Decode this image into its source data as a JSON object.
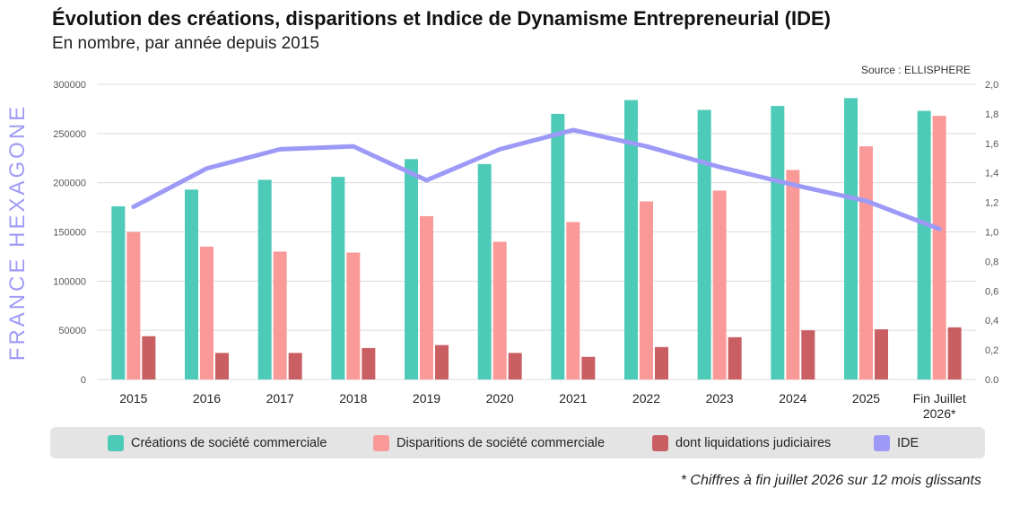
{
  "header": {
    "title": "Évolution des créations, disparitions et Indice de Dynamisme Entrepreneurial (IDE)",
    "subtitle": "En nombre, par année depuis 2015",
    "source": "Source : ELLISPHERE",
    "side_label": "FRANCE HEXAGONE"
  },
  "footnote": "* Chiffres à fin juillet 2026 sur 12 mois glissants",
  "colors": {
    "creations": "#4ecab8",
    "disparitions": "#f99a98",
    "liquidations": "#c95f62",
    "ide": "#9d9af7",
    "grid": "#dcdcdc",
    "axis_text": "#555555"
  },
  "chart_data": {
    "type": "bar",
    "categories": [
      "2015",
      "2016",
      "2017",
      "2018",
      "2019",
      "2020",
      "2021",
      "2022",
      "2023",
      "2024",
      "2025",
      "Fin Juillet 2026*"
    ],
    "category_lines": [
      [
        "2015"
      ],
      [
        "2016"
      ],
      [
        "2017"
      ],
      [
        "2018"
      ],
      [
        "2019"
      ],
      [
        "2020"
      ],
      [
        "2021"
      ],
      [
        "2022"
      ],
      [
        "2023"
      ],
      [
        "2024"
      ],
      [
        "2025"
      ],
      [
        "Fin Juillet",
        "2026*"
      ]
    ],
    "y_left": {
      "min": 0,
      "max": 300000,
      "ticks": [
        "0",
        "50000",
        "100000",
        "150000",
        "200000",
        "250000",
        "300000"
      ]
    },
    "y_right": {
      "min": 0,
      "max": 2.0,
      "ticks": [
        "0.0",
        "0,2",
        "0,4",
        "0,6",
        "0,8",
        "1,0",
        "1,2",
        "1,4",
        "1,6",
        "1,8",
        "2,0"
      ]
    },
    "grid": true,
    "legend_position": "bottom",
    "series": [
      {
        "name": "Créations de société commerciale",
        "key": "creations",
        "kind": "bar",
        "axis": "left",
        "values": [
          176000,
          193000,
          203000,
          206000,
          224000,
          219000,
          270000,
          284000,
          274000,
          278000,
          286000,
          273000
        ]
      },
      {
        "name": "Disparitions de société commerciale",
        "key": "disparitions",
        "kind": "bar",
        "axis": "left",
        "values": [
          150000,
          135000,
          130000,
          129000,
          166000,
          140000,
          160000,
          181000,
          192000,
          213000,
          237000,
          268000
        ]
      },
      {
        "name": "dont liquidations judiciaires",
        "key": "liquidations",
        "kind": "bar",
        "axis": "left",
        "values": [
          44000,
          27000,
          27000,
          32000,
          35000,
          27000,
          23000,
          33000,
          43000,
          50000,
          51000,
          53000
        ]
      },
      {
        "name": "IDE",
        "key": "ide",
        "kind": "line",
        "axis": "right",
        "values": [
          1.17,
          1.43,
          1.56,
          1.58,
          1.35,
          1.56,
          1.69,
          1.58,
          1.44,
          1.32,
          1.21,
          1.02
        ]
      }
    ]
  }
}
